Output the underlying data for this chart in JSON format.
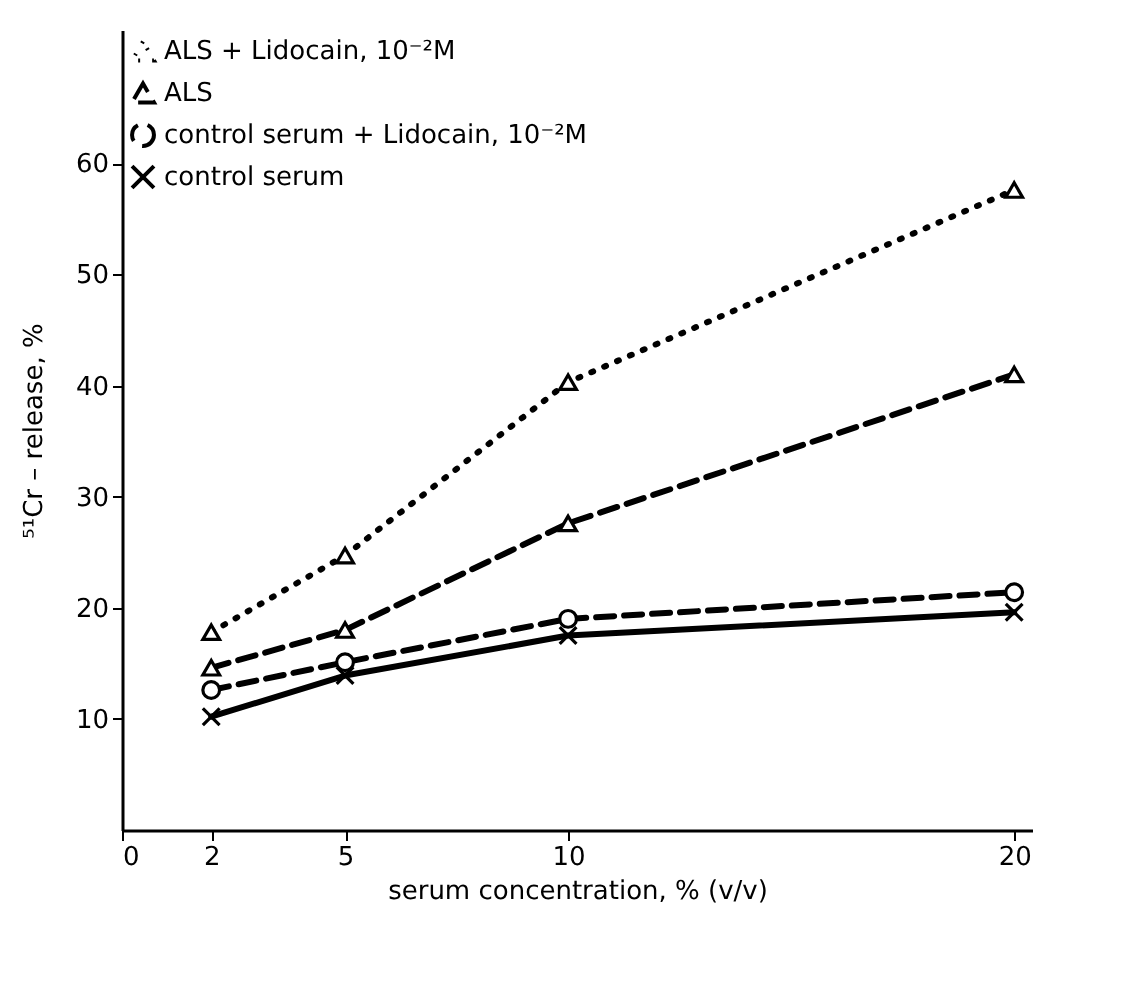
{
  "chart_data": {
    "type": "line",
    "xlabel": "serum concentration, %  (v/v)",
    "ylabel": "⁵¹Cr – release,   %",
    "x": [
      2,
      5,
      10,
      20
    ],
    "xlim": [
      0,
      20.4
    ],
    "xticks": [
      0,
      2,
      5,
      10,
      20
    ],
    "ylim": [
      0,
      72
    ],
    "yticks": [
      10,
      20,
      30,
      40,
      50,
      60
    ],
    "grid": false,
    "legend": "top left",
    "series": [
      {
        "name": "ALS + Lidocain, 10⁻²M",
        "color": "#000000",
        "marker": "triangle",
        "line_style": "dotted",
        "values": [
          17.8,
          24.7,
          40.3,
          57.6
        ]
      },
      {
        "name": "ALS",
        "color": "#000000",
        "marker": "triangle",
        "line_style": "dashed",
        "values": [
          14.6,
          18,
          27.6,
          41
        ]
      },
      {
        "name": "control serum + Lidocain, 10⁻²M",
        "color": "#000000",
        "marker": "circle",
        "line_style": "dashed",
        "values": [
          12.6,
          15.1,
          19,
          21.4
        ]
      },
      {
        "name": "control serum",
        "color": "#000000",
        "marker": "cross",
        "line_style": "solid",
        "values": [
          10.2,
          13.9,
          17.5,
          19.6
        ]
      }
    ]
  }
}
